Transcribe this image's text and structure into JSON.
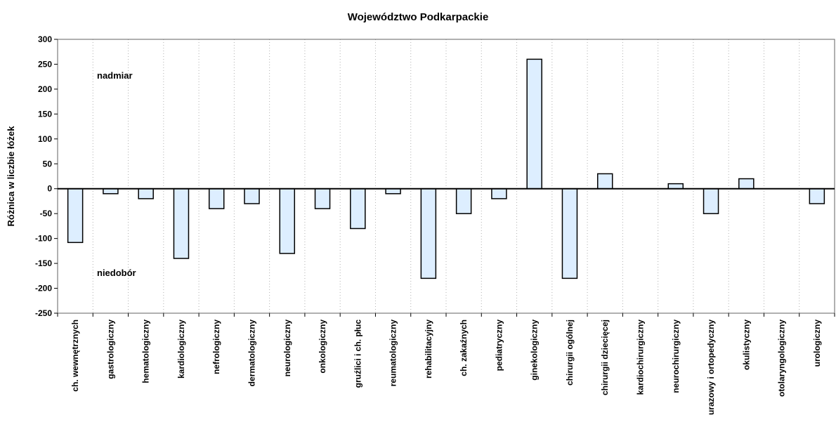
{
  "chart_data": {
    "type": "bar",
    "title": "Województwo Podkarpackie",
    "xlabel": "",
    "ylabel": "Różnica w liczbie łóżek",
    "ylim": [
      -250,
      300
    ],
    "yticks": [
      300,
      250,
      200,
      150,
      100,
      50,
      0,
      -50,
      -100,
      -150,
      -200,
      -250
    ],
    "grid": "vertical dotted",
    "bar_color": "#ddeeff",
    "annotations": [
      "nadmiar",
      "niedobór"
    ],
    "categories": [
      "ch. wewnętrznych",
      "gastrologiczny",
      "hematologiczny",
      "kardiologiczny",
      "nefrologiczny",
      "dermatologiczny",
      "neurologiczny",
      "onkologiczny",
      "gruźlici i ch. płuc",
      "reumatologiczny",
      "rehabilitacyjny",
      "ch. zakaźnych",
      "pediatryczny",
      "ginekologiczny",
      "chirurgii ogólnej",
      "chirurgii dziecięcej",
      "kardiochirurgiczny",
      "neurochirurgiczny",
      "urazowy i ortopedyczny",
      "okulistyczny",
      "otolaryngologiczny",
      "urologiczny"
    ],
    "values": [
      -108,
      -10,
      -20,
      -140,
      -40,
      -30,
      -130,
      -40,
      -80,
      -10,
      -180,
      -50,
      -20,
      260,
      -180,
      30,
      0,
      10,
      -50,
      20,
      0,
      -30
    ]
  }
}
